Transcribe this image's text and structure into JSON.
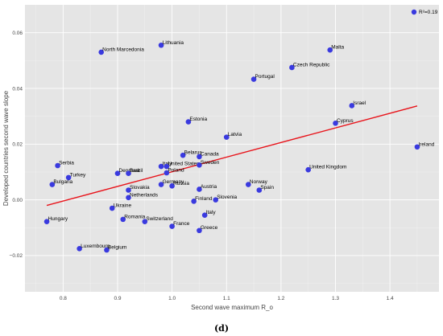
{
  "caption": "(d)",
  "chart_data": {
    "type": "scatter",
    "xlabel": "Second wave maximum R_o",
    "ylabel": "Developed countries second wave slope",
    "xlim": [
      0.73,
      1.49
    ],
    "ylim": [
      -0.033,
      0.07
    ],
    "xticks": [
      0.8,
      0.9,
      1.0,
      1.1,
      1.2,
      1.3,
      1.4
    ],
    "yticks": [
      -0.02,
      0.0,
      0.02,
      0.04,
      0.06
    ],
    "xtick_labels": [
      "0.8",
      "0.9",
      "1.0",
      "1.1",
      "1.2",
      "1.3",
      "1.4"
    ],
    "ytick_labels": [
      "−0.02",
      "0.00",
      "0.02",
      "0.04",
      "0.06"
    ],
    "grid": true,
    "legend": {
      "position": "top-right",
      "label": "R²=0.19"
    },
    "colors": {
      "points": "#3a3adf",
      "trend": "#e8141b",
      "background": "#e5e5e5",
      "grid": "#ffffff"
    },
    "trendline": {
      "x": [
        0.77,
        1.45
      ],
      "y": [
        -0.002,
        0.0337
      ]
    },
    "points": [
      {
        "name": "Lithuania",
        "x": 0.98,
        "y": 0.0555
      },
      {
        "name": "North Marcedonia",
        "x": 0.87,
        "y": 0.053
      },
      {
        "name": "Malta",
        "x": 1.29,
        "y": 0.0538
      },
      {
        "name": "Czech Republic",
        "x": 1.22,
        "y": 0.0475
      },
      {
        "name": "Portugal",
        "x": 1.15,
        "y": 0.0433
      },
      {
        "name": "Israel",
        "x": 1.33,
        "y": 0.0338
      },
      {
        "name": "Estonia",
        "x": 1.03,
        "y": 0.028
      },
      {
        "name": "Cyprus",
        "x": 1.3,
        "y": 0.0275
      },
      {
        "name": "Latvia",
        "x": 1.1,
        "y": 0.0225
      },
      {
        "name": "Ireland",
        "x": 1.45,
        "y": 0.019
      },
      {
        "name": "Belarus",
        "x": 1.02,
        "y": 0.016
      },
      {
        "name": "Canada",
        "x": 1.05,
        "y": 0.0155
      },
      {
        "name": "Serbia",
        "x": 0.79,
        "y": 0.0123
      },
      {
        "name": "Italy",
        "x": 0.98,
        "y": 0.012
      },
      {
        "name": "United States",
        "x": 0.99,
        "y": 0.012
      },
      {
        "name": "Sweden",
        "x": 1.05,
        "y": 0.0125
      },
      {
        "name": "Denmark",
        "x": 0.9,
        "y": 0.0095
      },
      {
        "name": "Brazil",
        "x": 0.92,
        "y": 0.0095
      },
      {
        "name": "Poland",
        "x": 0.99,
        "y": 0.0097
      },
      {
        "name": "United Kingdom",
        "x": 1.25,
        "y": 0.0108
      },
      {
        "name": "Turkey",
        "x": 0.81,
        "y": 0.008
      },
      {
        "name": "Bulgaria",
        "x": 0.78,
        "y": 0.0055
      },
      {
        "name": "Germany",
        "x": 0.98,
        "y": 0.0055
      },
      {
        "name": "Russia",
        "x": 1.0,
        "y": 0.005
      },
      {
        "name": "Norway",
        "x": 1.14,
        "y": 0.0055
      },
      {
        "name": "Slovakia",
        "x": 0.92,
        "y": 0.0035
      },
      {
        "name": "Austria",
        "x": 1.05,
        "y": 0.0038
      },
      {
        "name": "Spain",
        "x": 1.16,
        "y": 0.0035
      },
      {
        "name": "Netherlands",
        "x": 0.92,
        "y": 0.0008
      },
      {
        "name": "Finland",
        "x": 1.04,
        "y": -0.0005
      },
      {
        "name": "Slovenia",
        "x": 1.08,
        "y": 0.0
      },
      {
        "name": "Ukraine",
        "x": 0.89,
        "y": -0.003
      },
      {
        "name": "Italy",
        "x": 1.06,
        "y": -0.0055
      },
      {
        "name": "Hungary",
        "x": 0.77,
        "y": -0.0078
      },
      {
        "name": "Romania",
        "x": 0.91,
        "y": -0.007
      },
      {
        "name": "Switzerland",
        "x": 0.95,
        "y": -0.0078
      },
      {
        "name": "France",
        "x": 1.0,
        "y": -0.0095
      },
      {
        "name": "Greece",
        "x": 1.05,
        "y": -0.011
      },
      {
        "name": "Luxembourg",
        "x": 0.83,
        "y": -0.0175
      },
      {
        "name": "Belgium",
        "x": 0.88,
        "y": -0.018
      }
    ]
  }
}
